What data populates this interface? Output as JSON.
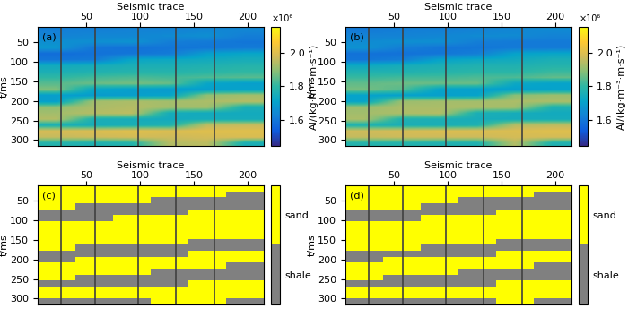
{
  "chart_data": [
    {
      "type": "heatmap",
      "panel_label": "(a)",
      "x_label": "Seismic trace",
      "y_label": "t/ms",
      "xlim": [
        5,
        215
      ],
      "ylim": [
        315,
        10
      ],
      "xticks": [
        50,
        100,
        150,
        200
      ],
      "yticks": [
        50,
        100,
        150,
        200,
        250,
        300
      ],
      "well_traces": [
        27,
        58,
        98,
        133,
        169
      ],
      "colorbar_label": "AI/(kg·m⁻³·m·s⁻¹)",
      "colorbar_multiplier": "×10⁶",
      "colorbar_range": [
        1.45,
        2.15
      ],
      "colorbar_ticks": [
        1.6,
        1.8,
        2.0
      ],
      "cells": [
        [
          1.62,
          1.62,
          1.63,
          1.63,
          1.64,
          1.64
        ],
        [
          1.63,
          1.64,
          1.64,
          1.65,
          1.66,
          1.62
        ],
        [
          1.66,
          1.66,
          1.67,
          1.62,
          1.61,
          1.6
        ],
        [
          1.68,
          1.6,
          1.59,
          1.6,
          1.6,
          1.61
        ],
        [
          1.58,
          1.59,
          1.6,
          1.61,
          1.7,
          1.72
        ],
        [
          1.6,
          1.61,
          1.72,
          1.73,
          1.74,
          1.75
        ],
        [
          1.74,
          1.75,
          1.76,
          1.76,
          1.77,
          1.78
        ],
        [
          1.76,
          1.77,
          1.78,
          1.78,
          1.79,
          1.8
        ],
        [
          1.8,
          1.82,
          1.83,
          1.82,
          1.83,
          1.84
        ],
        [
          1.84,
          1.86,
          1.87,
          1.86,
          1.72,
          1.7
        ],
        [
          1.88,
          1.72,
          1.7,
          1.69,
          1.7,
          1.71
        ],
        [
          1.7,
          1.69,
          1.7,
          1.71,
          1.9,
          1.92
        ],
        [
          1.7,
          1.92,
          1.93,
          1.92,
          1.93,
          1.94
        ],
        [
          1.9,
          1.93,
          1.94,
          1.92,
          1.92,
          1.76
        ],
        [
          1.92,
          1.94,
          1.95,
          1.75,
          1.74,
          1.74
        ],
        [
          1.94,
          1.76,
          1.75,
          1.74,
          1.75,
          1.75
        ],
        [
          1.76,
          1.75,
          1.76,
          1.77,
          1.95,
          1.96
        ],
        [
          1.98,
          1.99,
          2.0,
          1.99,
          2.0,
          2.0
        ],
        [
          1.96,
          1.97,
          1.98,
          1.97,
          1.98,
          1.99
        ],
        [
          1.78,
          1.77,
          1.78,
          1.94,
          1.95,
          1.76
        ]
      ]
    },
    {
      "type": "heatmap",
      "panel_label": "(b)",
      "x_label": "Seismic trace",
      "y_label": "t/ms",
      "xlim": [
        5,
        215
      ],
      "ylim": [
        315,
        10
      ],
      "xticks": [
        50,
        100,
        150,
        200
      ],
      "yticks": [
        50,
        100,
        150,
        200,
        250,
        300
      ],
      "well_traces": [
        27,
        58,
        98,
        133,
        169
      ],
      "colorbar_label": "AI/(kg·m⁻³·m·s⁻¹)",
      "colorbar_multiplier": "×10⁶",
      "colorbar_range": [
        1.45,
        2.15
      ],
      "colorbar_ticks": [
        1.6,
        1.8,
        2.0
      ],
      "cells": [
        [
          1.61,
          1.62,
          1.62,
          1.63,
          1.64,
          1.65
        ],
        [
          1.63,
          1.63,
          1.64,
          1.65,
          1.65,
          1.63
        ],
        [
          1.65,
          1.66,
          1.66,
          1.62,
          1.61,
          1.61
        ],
        [
          1.67,
          1.62,
          1.6,
          1.6,
          1.61,
          1.61
        ],
        [
          1.59,
          1.59,
          1.6,
          1.62,
          1.71,
          1.72
        ],
        [
          1.6,
          1.62,
          1.71,
          1.73,
          1.74,
          1.76
        ],
        [
          1.73,
          1.75,
          1.76,
          1.77,
          1.77,
          1.78
        ],
        [
          1.77,
          1.77,
          1.78,
          1.79,
          1.79,
          1.81
        ],
        [
          1.81,
          1.82,
          1.82,
          1.83,
          1.83,
          1.85
        ],
        [
          1.85,
          1.86,
          1.86,
          1.86,
          1.73,
          1.71
        ],
        [
          1.87,
          1.84,
          1.71,
          1.7,
          1.7,
          1.71
        ],
        [
          1.71,
          1.7,
          1.7,
          1.71,
          1.89,
          1.91
        ],
        [
          1.71,
          1.91,
          1.92,
          1.92,
          1.93,
          1.93
        ],
        [
          1.91,
          1.93,
          1.93,
          1.93,
          1.92,
          1.77
        ],
        [
          1.92,
          1.93,
          1.94,
          1.76,
          1.75,
          1.74
        ],
        [
          1.93,
          1.77,
          1.76,
          1.75,
          1.75,
          1.75
        ],
        [
          1.77,
          1.76,
          1.76,
          1.77,
          1.94,
          1.95
        ],
        [
          1.97,
          1.98,
          1.99,
          1.99,
          1.99,
          2.0
        ],
        [
          1.96,
          1.97,
          1.97,
          1.97,
          1.98,
          1.98
        ],
        [
          1.78,
          1.78,
          1.77,
          1.77,
          1.94,
          1.77
        ]
      ]
    },
    {
      "type": "facies",
      "panel_label": "(c)",
      "x_label": "Seismic trace",
      "y_label": "t/ms",
      "xlim": [
        5,
        215
      ],
      "ylim": [
        315,
        10
      ],
      "xticks": [
        50,
        100,
        150,
        200
      ],
      "yticks": [
        50,
        100,
        150,
        200,
        250,
        300
      ],
      "well_traces": [
        27,
        58,
        98,
        133,
        169
      ],
      "classes": [
        "shale",
        "sand"
      ],
      "colors": [
        "#808080",
        "#ffff00"
      ],
      "cells": [
        [
          1,
          1,
          1,
          1,
          1,
          1
        ],
        [
          1,
          1,
          1,
          1,
          1,
          0
        ],
        [
          1,
          1,
          1,
          0,
          0,
          0
        ],
        [
          1,
          0,
          0,
          0,
          0,
          0
        ],
        [
          0,
          0,
          0,
          0,
          1,
          1
        ],
        [
          0,
          0,
          1,
          1,
          1,
          1
        ],
        [
          1,
          1,
          1,
          1,
          1,
          1
        ],
        [
          1,
          1,
          1,
          1,
          1,
          1
        ],
        [
          1,
          1,
          1,
          1,
          1,
          1
        ],
        [
          1,
          1,
          1,
          1,
          0,
          0
        ],
        [
          1,
          0,
          0,
          0,
          0,
          0
        ],
        [
          0,
          0,
          0,
          0,
          1,
          1
        ],
        [
          0,
          1,
          1,
          1,
          1,
          1
        ],
        [
          1,
          1,
          1,
          1,
          1,
          0
        ],
        [
          1,
          1,
          1,
          0,
          0,
          0
        ],
        [
          1,
          0,
          0,
          0,
          0,
          0
        ],
        [
          0,
          0,
          0,
          0,
          1,
          1
        ],
        [
          1,
          1,
          1,
          1,
          1,
          1
        ],
        [
          1,
          1,
          1,
          1,
          1,
          1
        ],
        [
          0,
          0,
          0,
          1,
          1,
          0
        ]
      ]
    },
    {
      "type": "facies",
      "panel_label": "(d)",
      "x_label": "Seismic trace",
      "y_label": "t/ms",
      "xlim": [
        5,
        215
      ],
      "ylim": [
        315,
        10
      ],
      "xticks": [
        50,
        100,
        150,
        200
      ],
      "yticks": [
        50,
        100,
        150,
        200,
        250,
        300
      ],
      "well_traces": [
        27,
        58,
        98,
        133,
        169
      ],
      "classes": [
        "shale",
        "sand"
      ],
      "colors": [
        "#808080",
        "#ffff00"
      ],
      "cells": [
        [
          1,
          1,
          1,
          1,
          1,
          1
        ],
        [
          1,
          1,
          1,
          1,
          1,
          0
        ],
        [
          1,
          1,
          1,
          0,
          0,
          0
        ],
        [
          1,
          1,
          0,
          0,
          0,
          0
        ],
        [
          0,
          0,
          0,
          0,
          1,
          1
        ],
        [
          0,
          0,
          1,
          1,
          1,
          1
        ],
        [
          1,
          1,
          1,
          1,
          1,
          1
        ],
        [
          1,
          1,
          1,
          1,
          1,
          1
        ],
        [
          1,
          1,
          1,
          1,
          1,
          1
        ],
        [
          1,
          1,
          1,
          1,
          0,
          0
        ],
        [
          1,
          1,
          0,
          0,
          0,
          0
        ],
        [
          0,
          0,
          0,
          0,
          1,
          1
        ],
        [
          0,
          1,
          1,
          1,
          1,
          1
        ],
        [
          1,
          1,
          1,
          1,
          1,
          0
        ],
        [
          1,
          1,
          1,
          0,
          0,
          0
        ],
        [
          1,
          0,
          0,
          0,
          0,
          0
        ],
        [
          0,
          0,
          0,
          0,
          1,
          1
        ],
        [
          1,
          1,
          1,
          1,
          1,
          1
        ],
        [
          1,
          1,
          1,
          1,
          1,
          1
        ],
        [
          0,
          0,
          0,
          0,
          1,
          0
        ]
      ]
    }
  ]
}
